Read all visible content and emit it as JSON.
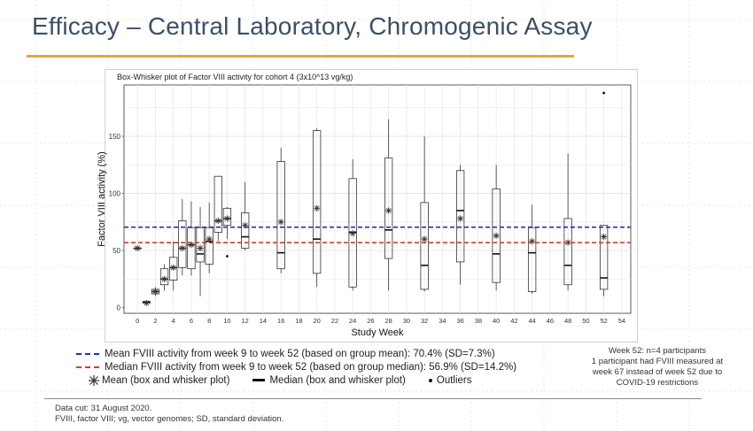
{
  "slide": {
    "title": "Efficacy – Central Laboratory, Chromogenic Assay",
    "accent_color": "#e2a83a"
  },
  "chart_data": {
    "type": "box",
    "title": "Box-Whisker plot of Factor VIII activity for cohort 4 (3x10^13 vg/kg)",
    "xlabel": "Study Week",
    "ylabel": "Factor VIII activity (%)",
    "xlim": [
      -1.5,
      55
    ],
    "ylim": [
      -5,
      195
    ],
    "x_ticks": [
      0,
      2,
      4,
      6,
      8,
      10,
      12,
      14,
      16,
      18,
      20,
      22,
      24,
      26,
      28,
      30,
      32,
      34,
      36,
      38,
      40,
      42,
      44,
      46,
      48,
      50,
      52,
      54
    ],
    "y_ticks": [
      0,
      50,
      100,
      150
    ],
    "grid": true,
    "reference_lines": [
      {
        "name": "Mean FVIII activity from week 9 to week 52 (based on group mean): 70.4% (SD=7.3%)",
        "y": 70.4,
        "color": "#2a2ab8"
      },
      {
        "name": "Median FVIII activity from week 9 to week 52 (based on group median): 56.9% (SD=14.2%)",
        "y": 56.9,
        "color": "#d43b3b"
      }
    ],
    "boxes": [
      {
        "week": 0,
        "min": 52,
        "q1": 52,
        "median": 52,
        "q3": 52,
        "max": 52,
        "mean": 52
      },
      {
        "week": 1,
        "min": 3,
        "q1": 4,
        "median": 5,
        "q3": 5,
        "max": 6,
        "mean": 4
      },
      {
        "week": 2,
        "min": 10,
        "q1": 12,
        "median": 14,
        "q3": 16,
        "max": 18,
        "mean": 14
      },
      {
        "week": 3,
        "min": 15,
        "q1": 20,
        "median": 25,
        "q3": 34,
        "max": 38,
        "mean": 25
      },
      {
        "week": 4,
        "min": 15,
        "q1": 24,
        "median": 35,
        "q3": 44,
        "max": 58,
        "mean": 35
      },
      {
        "week": 5,
        "min": 28,
        "q1": 35,
        "median": 52,
        "q3": 76,
        "max": 95,
        "mean": 52
      },
      {
        "week": 6,
        "min": 28,
        "q1": 34,
        "median": 55,
        "q3": 70,
        "max": 93,
        "mean": 55
      },
      {
        "week": 7,
        "min": 10,
        "q1": 40,
        "median": 47,
        "q3": 70,
        "max": 88,
        "mean": 52
      },
      {
        "week": 8,
        "min": 30,
        "q1": 38,
        "median": 58,
        "q3": 70,
        "max": 92,
        "mean": 60
      },
      {
        "week": 9,
        "min": 58,
        "q1": 66,
        "median": 76,
        "q3": 115,
        "max": 115,
        "mean": 76
      },
      {
        "week": 10,
        "min": 60,
        "q1": 72,
        "median": 78,
        "q3": 87,
        "max": 88,
        "mean": 78
      },
      {
        "week": 12,
        "min": 50,
        "q1": 52,
        "median": 62,
        "q3": 83,
        "max": 110,
        "mean": 72
      },
      {
        "week": 16,
        "min": 30,
        "q1": 34,
        "median": 48,
        "q3": 128,
        "max": 140,
        "mean": 75
      },
      {
        "week": 20,
        "min": 18,
        "q1": 30,
        "median": 60,
        "q3": 155,
        "max": 157,
        "mean": 87
      },
      {
        "week": 24,
        "min": 15,
        "q1": 18,
        "median": 66,
        "q3": 113,
        "max": 130,
        "mean": 65
      },
      {
        "week": 28,
        "min": 15,
        "q1": 43,
        "median": 68,
        "q3": 131,
        "max": 165,
        "mean": 85
      },
      {
        "week": 32,
        "min": 14,
        "q1": 16,
        "median": 37,
        "q3": 92,
        "max": 150,
        "mean": 60
      },
      {
        "week": 36,
        "min": 20,
        "q1": 40,
        "median": 85,
        "q3": 120,
        "max": 125,
        "mean": 78
      },
      {
        "week": 40,
        "min": 15,
        "q1": 22,
        "median": 47,
        "q3": 104,
        "max": 125,
        "mean": 63
      },
      {
        "week": 44,
        "min": 12,
        "q1": 14,
        "median": 48,
        "q3": 70,
        "max": 90,
        "mean": 58
      },
      {
        "week": 48,
        "min": 15,
        "q1": 20,
        "median": 37,
        "q3": 78,
        "max": 135,
        "mean": 57
      },
      {
        "week": 52,
        "min": 10,
        "q1": 16,
        "median": 26,
        "q3": 72,
        "max": 72,
        "mean": 62
      }
    ],
    "outliers": [
      {
        "week": 10,
        "y": 45
      },
      {
        "week": 52,
        "y": 188
      }
    ],
    "colors": {
      "box": "#333333",
      "grid": "#e4e4e4",
      "mean_line": "#2a2ab8",
      "median_line": "#d43b3b"
    }
  },
  "legend": {
    "mean_ref": "Mean FVIII activity from week 9 to week 52 (based on group mean): 70.4% (SD=7.3%)",
    "median_ref": "Median FVIII activity from week 9 to week 52 (based on group median): 56.9% (SD=14.2%)",
    "mean_sym": "Mean (box and whisker plot)",
    "median_sym": "Median (box and whisker plot)",
    "outliers": "Outliers"
  },
  "note": {
    "line1": "Week 52: n=4 participants",
    "line2": "1 participant had FVIII measured at",
    "line3": "week 67 instead of week 52 due to",
    "line4": "COVID-19 restrictions"
  },
  "footer": {
    "line1": "Data cut: 31 August 2020.",
    "line2": "FVIII, factor VIII; vg, vector genomes; SD, standard deviation."
  }
}
